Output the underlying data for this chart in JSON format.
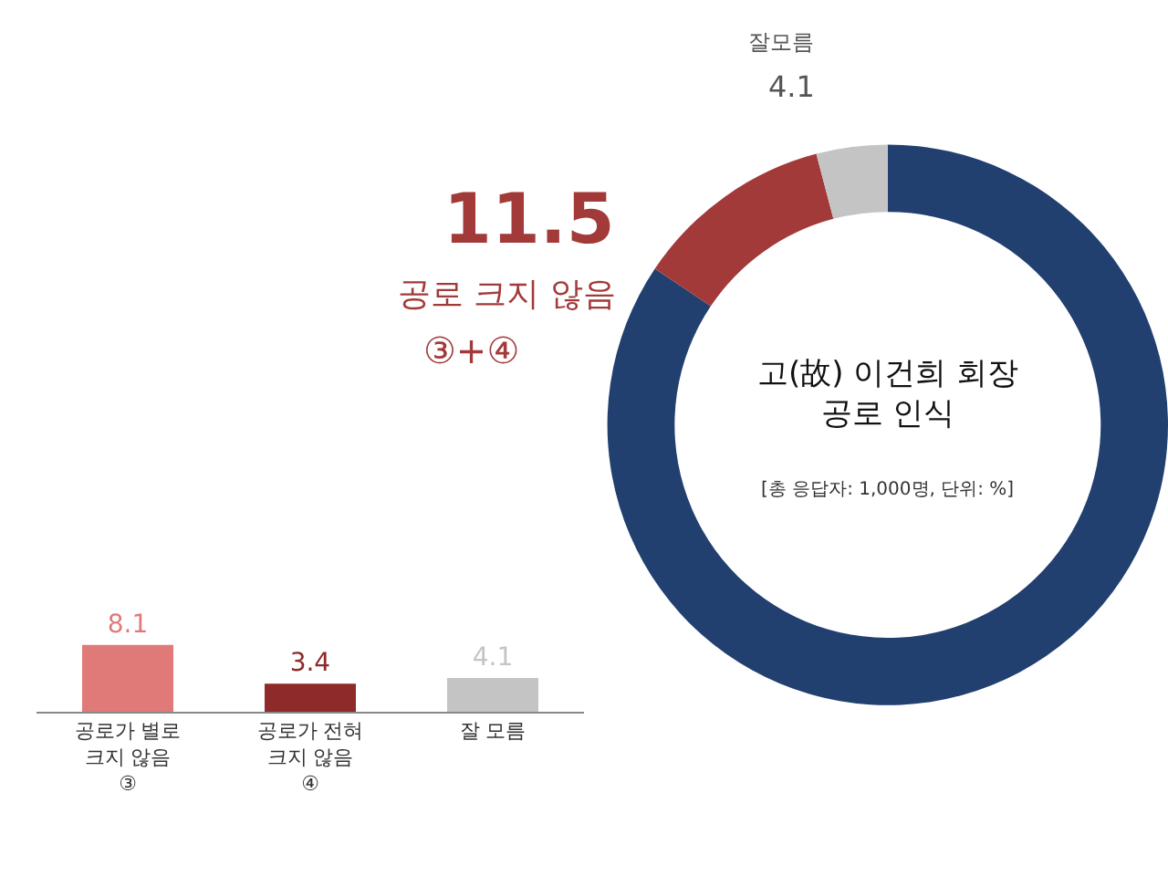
{
  "chart_data": [
    {
      "type": "bar",
      "categories": [
        "공로가 별로\n크지 않음\n③",
        "공로가 전혀\n크지 않음\n④",
        "잘 모름"
      ],
      "values": [
        8.1,
        3.4,
        4.1
      ],
      "colors": [
        "#e07a78",
        "#8e2a2a",
        "#c4c4c4"
      ],
      "data_labels": true
    },
    {
      "type": "donut",
      "title": "고(故) 이건희 회장\n공로 인식",
      "subtitle": "[총 응답자: 1,000명, 단위: %]",
      "categories": [
        null,
        "공로 크지 않음",
        "잘모름"
      ],
      "values": [
        84.4,
        11.5,
        4.1
      ],
      "colors": [
        "#21406f",
        "#a33a3a",
        "#c4c4c4"
      ],
      "value_labels": [
        null,
        "11.5",
        "4.1"
      ],
      "annotations": [
        "③+④"
      ]
    }
  ]
}
